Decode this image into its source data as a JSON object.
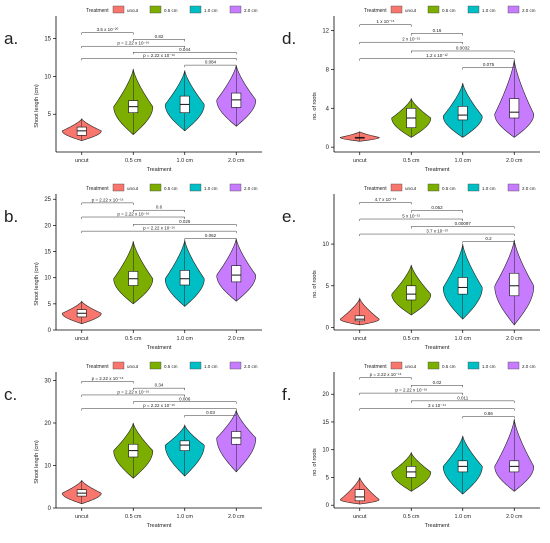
{
  "chart_data": [
    {
      "type": "violin",
      "panel_label": "a.",
      "legend_title": "Treatment",
      "legend_labels": [
        "uncut",
        "0.5 cm",
        "1.0 cm",
        "2.0 cm"
      ],
      "colors": [
        "#f8766d",
        "#7cae00",
        "#00bfc4",
        "#c77cff"
      ],
      "categories": [
        "uncut",
        "0.5 cm",
        "1.0 cm",
        "2.0 cm"
      ],
      "xlabel": "Treatment",
      "ylabel": "Shoot length (cm)",
      "ylim": [
        0,
        18
      ],
      "yticks": [
        5,
        10,
        15
      ],
      "groups": [
        {
          "min": 1.5,
          "q1": 2.2,
          "median": 2.8,
          "q3": 3.3,
          "max": 4.4,
          "mode": 2.8
        },
        {
          "min": 2.3,
          "q1": 5.2,
          "median": 6.0,
          "q3": 6.8,
          "max": 11.0,
          "mode": 6.0
        },
        {
          "min": 2.8,
          "q1": 5.2,
          "median": 6.3,
          "q3": 7.4,
          "max": 10.8,
          "mode": 6.3
        },
        {
          "min": 3.4,
          "q1": 5.9,
          "median": 6.9,
          "q3": 7.8,
          "max": 11.5,
          "mode": 6.9
        }
      ],
      "comparisons": [
        {
          "from": 0,
          "to": 1,
          "y": 15.8,
          "label": "3.5 x 10⁻²⁰"
        },
        {
          "from": 1,
          "to": 2,
          "y": 14.9,
          "label": "0.82"
        },
        {
          "from": 0,
          "to": 2,
          "y": 14.0,
          "label": "p = 2.22 x 10⁻¹⁶"
        },
        {
          "from": 1,
          "to": 3,
          "y": 13.2,
          "label": "0.044"
        },
        {
          "from": 0,
          "to": 3,
          "y": 12.4,
          "label": "p = 2.22 x 10⁻¹⁶"
        },
        {
          "from": 2,
          "to": 3,
          "y": 11.5,
          "label": "0.084"
        }
      ]
    },
    {
      "type": "violin",
      "panel_label": "b.",
      "legend_title": "Treatment",
      "legend_labels": [
        "uncut",
        "0.5 cm",
        "1.0 cm",
        "2.0 cm"
      ],
      "colors": [
        "#f8766d",
        "#7cae00",
        "#00bfc4",
        "#c77cff"
      ],
      "categories": [
        "uncut",
        "0.5 cm",
        "1.0 cm",
        "2.0 cm"
      ],
      "xlabel": "Treatment",
      "ylabel": "Shoot length (cm)",
      "ylim": [
        0,
        26
      ],
      "yticks": [
        0,
        5,
        10,
        15,
        20,
        25
      ],
      "groups": [
        {
          "min": 1.2,
          "q1": 2.5,
          "median": 3.2,
          "q3": 3.9,
          "max": 5.5,
          "mode": 3.2
        },
        {
          "min": 5.0,
          "q1": 8.5,
          "median": 9.8,
          "q3": 11.2,
          "max": 17.0,
          "mode": 9.8
        },
        {
          "min": 4.5,
          "q1": 8.6,
          "median": 9.8,
          "q3": 11.4,
          "max": 17.2,
          "mode": 9.8
        },
        {
          "min": 5.5,
          "q1": 9.2,
          "median": 10.5,
          "q3": 12.3,
          "max": 17.5,
          "mode": 10.5
        }
      ],
      "comparisons": [
        {
          "from": 0,
          "to": 1,
          "y": 24.3,
          "label": "p = 2.22 x 10⁻¹⁶"
        },
        {
          "from": 1,
          "to": 2,
          "y": 22.9,
          "label": "0.6"
        },
        {
          "from": 0,
          "to": 2,
          "y": 21.6,
          "label": "p = 2.22 x 10⁻¹⁶"
        },
        {
          "from": 1,
          "to": 3,
          "y": 20.2,
          "label": "0.025"
        },
        {
          "from": 0,
          "to": 3,
          "y": 18.9,
          "label": "p = 2.22 x 10⁻¹⁶"
        },
        {
          "from": 2,
          "to": 3,
          "y": 17.5,
          "label": "0.062"
        }
      ]
    },
    {
      "type": "violin",
      "panel_label": "c.",
      "legend_title": "Treatment",
      "legend_labels": [
        "uncut",
        "0.5 cm",
        "1.0 cm",
        "2.0 cm"
      ],
      "colors": [
        "#f8766d",
        "#7cae00",
        "#00bfc4",
        "#c77cff"
      ],
      "categories": [
        "uncut",
        "0.5 cm",
        "1.0 cm",
        "2.0 cm"
      ],
      "xlabel": "Treatment",
      "ylabel": "Shoot length (cm)",
      "ylim": [
        0,
        32
      ],
      "yticks": [
        0,
        10,
        20,
        30
      ],
      "groups": [
        {
          "min": 1.0,
          "q1": 2.8,
          "median": 3.5,
          "q3": 4.3,
          "max": 6.5,
          "mode": 3.5
        },
        {
          "min": 7.0,
          "q1": 12.0,
          "median": 13.5,
          "q3": 15.0,
          "max": 20.0,
          "mode": 13.5
        },
        {
          "min": 7.5,
          "q1": 13.5,
          "median": 14.8,
          "q3": 15.8,
          "max": 19.5,
          "mode": 14.8
        },
        {
          "min": 8.5,
          "q1": 15.0,
          "median": 16.5,
          "q3": 18.0,
          "max": 23.0,
          "mode": 16.5
        }
      ],
      "comparisons": [
        {
          "from": 0,
          "to": 1,
          "y": 29.8,
          "label": "p = 2.22 x 10⁻¹⁶"
        },
        {
          "from": 1,
          "to": 2,
          "y": 28.2,
          "label": "0.34"
        },
        {
          "from": 0,
          "to": 2,
          "y": 26.6,
          "label": "p = 2.22 x 10⁻¹⁶"
        },
        {
          "from": 1,
          "to": 3,
          "y": 25.0,
          "label": "0.006"
        },
        {
          "from": 0,
          "to": 3,
          "y": 23.4,
          "label": "p = 2.22 x 10⁻¹⁶"
        },
        {
          "from": 2,
          "to": 3,
          "y": 21.8,
          "label": "0.03"
        }
      ]
    },
    {
      "type": "violin",
      "panel_label": "d.",
      "legend_title": "Treatment",
      "legend_labels": [
        "uncut",
        "0.5 cm",
        "1.0 cm",
        "2.0 cm"
      ],
      "colors": [
        "#f8766d",
        "#7cae00",
        "#00bfc4",
        "#c77cff"
      ],
      "categories": [
        "uncut",
        "0.5 cm",
        "1.0 cm",
        "2.0 cm"
      ],
      "xlabel": "Treatment",
      "ylabel": "no. of roots",
      "ylim": [
        -0.5,
        13.5
      ],
      "yticks": [
        0,
        4,
        8,
        12
      ],
      "groups": [
        {
          "min": 0.6,
          "q1": 1.0,
          "median": 1.0,
          "q3": 1.0,
          "max": 1.6,
          "mode": 1.0
        },
        {
          "min": 1.0,
          "q1": 2.0,
          "median": 3.0,
          "q3": 4.0,
          "max": 5.0,
          "mode": 3.0
        },
        {
          "min": 1.0,
          "q1": 2.8,
          "median": 3.3,
          "q3": 4.2,
          "max": 6.6,
          "mode": 3.2
        },
        {
          "min": 1.0,
          "q1": 3.0,
          "median": 3.6,
          "q3": 5.0,
          "max": 9.0,
          "mode": 3.4
        }
      ],
      "comparisons": [
        {
          "from": 0,
          "to": 1,
          "y": 12.6,
          "label": "1 x 10⁻¹⁵"
        },
        {
          "from": 1,
          "to": 2,
          "y": 11.7,
          "label": "0.16"
        },
        {
          "from": 0,
          "to": 2,
          "y": 10.8,
          "label": "2 x 10⁻¹⁵"
        },
        {
          "from": 1,
          "to": 3,
          "y": 9.9,
          "label": "0.0032"
        },
        {
          "from": 0,
          "to": 3,
          "y": 9.1,
          "label": "1.2 x 10⁻¹²"
        },
        {
          "from": 2,
          "to": 3,
          "y": 8.2,
          "label": "0.075"
        }
      ]
    },
    {
      "type": "violin",
      "panel_label": "e.",
      "legend_title": "Treatment",
      "legend_labels": [
        "uncut",
        "0.5 cm",
        "1.0 cm",
        "2.0 cm"
      ],
      "colors": [
        "#f8766d",
        "#7cae00",
        "#00bfc4",
        "#c77cff"
      ],
      "categories": [
        "uncut",
        "0.5 cm",
        "1.0 cm",
        "2.0 cm"
      ],
      "xlabel": "Treatment",
      "ylabel": "no. of roots",
      "ylim": [
        -0.3,
        16
      ],
      "yticks": [
        0,
        5,
        10
      ],
      "groups": [
        {
          "min": 0.3,
          "q1": 0.8,
          "median": 1.0,
          "q3": 1.4,
          "max": 3.5,
          "mode": 1.0
        },
        {
          "min": 1.5,
          "q1": 3.3,
          "median": 4.0,
          "q3": 5.0,
          "max": 7.5,
          "mode": 4.0
        },
        {
          "min": 1.0,
          "q1": 4.0,
          "median": 4.8,
          "q3": 6.0,
          "max": 10.0,
          "mode": 4.8
        },
        {
          "min": 0.3,
          "q1": 3.8,
          "median": 5.0,
          "q3": 6.5,
          "max": 10.5,
          "mode": 5.0
        }
      ],
      "comparisons": [
        {
          "from": 0,
          "to": 1,
          "y": 15.0,
          "label": "4.7 x 10⁻¹⁵"
        },
        {
          "from": 1,
          "to": 2,
          "y": 14.0,
          "label": "0.052"
        },
        {
          "from": 0,
          "to": 2,
          "y": 13.0,
          "label": "5 x 10⁻¹⁵"
        },
        {
          "from": 1,
          "to": 3,
          "y": 12.1,
          "label": "0.00097"
        },
        {
          "from": 0,
          "to": 3,
          "y": 11.2,
          "label": "3.7 x 10⁻¹³"
        },
        {
          "from": 2,
          "to": 3,
          "y": 10.3,
          "label": "0.2"
        }
      ]
    },
    {
      "type": "violin",
      "panel_label": "f.",
      "legend_title": "Treatment",
      "legend_labels": [
        "uncut",
        "0.5 cm",
        "1.0 cm",
        "2.0 cm"
      ],
      "colors": [
        "#f8766d",
        "#7cae00",
        "#00bfc4",
        "#c77cff"
      ],
      "categories": [
        "uncut",
        "0.5 cm",
        "1.0 cm",
        "2.0 cm"
      ],
      "xlabel": "Treatment",
      "ylabel": "no. of roots",
      "ylim": [
        -0.5,
        24
      ],
      "yticks": [
        0,
        5,
        10,
        15,
        20
      ],
      "groups": [
        {
          "min": 0.2,
          "q1": 0.8,
          "median": 1.5,
          "q3": 2.8,
          "max": 5.0,
          "mode": 1.0
        },
        {
          "min": 2.5,
          "q1": 5.0,
          "median": 6.0,
          "q3": 7.0,
          "max": 9.5,
          "mode": 6.0
        },
        {
          "min": 2.0,
          "q1": 6.0,
          "median": 7.0,
          "q3": 8.0,
          "max": 12.5,
          "mode": 7.0
        },
        {
          "min": 2.5,
          "q1": 6.0,
          "median": 7.0,
          "q3": 8.0,
          "max": 15.5,
          "mode": 7.0
        }
      ],
      "comparisons": [
        {
          "from": 0,
          "to": 1,
          "y": 23.0,
          "label": "p = 2.22 x 10⁻¹⁶"
        },
        {
          "from": 1,
          "to": 2,
          "y": 21.6,
          "label": "0.02"
        },
        {
          "from": 0,
          "to": 2,
          "y": 20.2,
          "label": "p = 2.22 x 10⁻¹⁶"
        },
        {
          "from": 1,
          "to": 3,
          "y": 18.8,
          "label": "0.011"
        },
        {
          "from": 0,
          "to": 3,
          "y": 17.4,
          "label": "3 x 10⁻¹⁴"
        },
        {
          "from": 2,
          "to": 3,
          "y": 16.0,
          "label": "0.86"
        }
      ]
    }
  ]
}
